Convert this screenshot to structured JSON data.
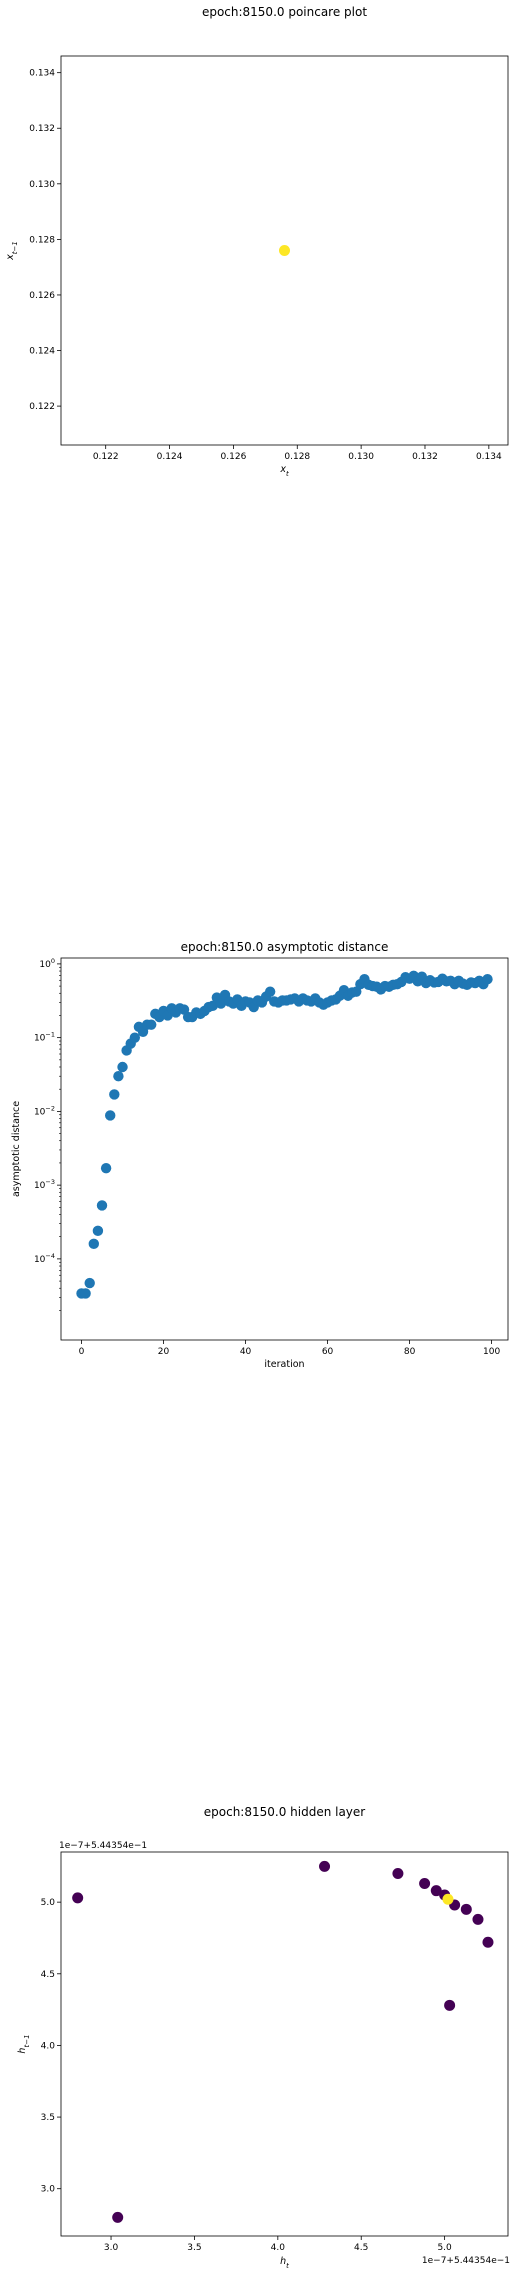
{
  "chart_data": [
    {
      "type": "scatter",
      "title": "epoch:8150.0 poincare plot",
      "xlabel": "x_t",
      "ylabel": "x_{t-1}",
      "xlim": [
        0.1206,
        0.1346
      ],
      "ylim": [
        0.1206,
        0.1346
      ],
      "xticks": [
        "0.122",
        "0.124",
        "0.126",
        "0.128",
        "0.130",
        "0.132",
        "0.134"
      ],
      "yticks": [
        "0.122",
        "0.124",
        "0.126",
        "0.128",
        "0.130",
        "0.132",
        "0.134"
      ],
      "grid": false,
      "points": [
        {
          "x": 0.1276,
          "y": 0.1276
        }
      ],
      "color": "#fde725"
    },
    {
      "type": "scatter",
      "title": "epoch:8150.0 asymptotic distance",
      "xlabel": "iteration",
      "ylabel": "asymptotic distance",
      "y_scale": "log",
      "xlim": [
        -5,
        104
      ],
      "ylim_log10": [
        -5.1,
        0.08
      ],
      "xticks": [
        "0",
        "20",
        "40",
        "60",
        "80",
        "100"
      ],
      "yticks": [
        {
          "base": "10",
          "exp": "0"
        },
        {
          "base": "10",
          "exp": "−1"
        },
        {
          "base": "10",
          "exp": "−2"
        },
        {
          "base": "10",
          "exp": "−3"
        },
        {
          "base": "10",
          "exp": "−4"
        }
      ],
      "grid": false,
      "color": "#1f77b4",
      "x": [
        0,
        1,
        2,
        3,
        4,
        5,
        6,
        7,
        8,
        9,
        10,
        11,
        12,
        13,
        14,
        15,
        16,
        17,
        18,
        19,
        20,
        21,
        22,
        23,
        24,
        25,
        26,
        27,
        28,
        29,
        30,
        31,
        32,
        33,
        34,
        35,
        36,
        37,
        38,
        39,
        40,
        41,
        42,
        43,
        44,
        45,
        46,
        47,
        48,
        49,
        50,
        51,
        52,
        53,
        54,
        55,
        56,
        57,
        58,
        59,
        60,
        61,
        62,
        63,
        64,
        65,
        66,
        67,
        68,
        69,
        70,
        71,
        72,
        73,
        74,
        75,
        76,
        77,
        78,
        79,
        80,
        81,
        82,
        83,
        84,
        85,
        86,
        87,
        88,
        89,
        90,
        91,
        92,
        93,
        94,
        95,
        96,
        97,
        98,
        99
      ],
      "y": [
        3.4e-05,
        3.4e-05,
        4.7e-05,
        0.00016,
        0.00024,
        0.00053,
        0.0017,
        0.0088,
        0.017,
        0.03,
        0.04,
        0.067,
        0.083,
        0.1,
        0.14,
        0.12,
        0.15,
        0.15,
        0.21,
        0.19,
        0.23,
        0.2,
        0.25,
        0.22,
        0.25,
        0.24,
        0.19,
        0.19,
        0.22,
        0.21,
        0.23,
        0.26,
        0.27,
        0.35,
        0.29,
        0.38,
        0.31,
        0.29,
        0.33,
        0.27,
        0.31,
        0.3,
        0.26,
        0.32,
        0.3,
        0.36,
        0.42,
        0.31,
        0.3,
        0.32,
        0.32,
        0.33,
        0.34,
        0.31,
        0.34,
        0.32,
        0.31,
        0.34,
        0.3,
        0.28,
        0.3,
        0.32,
        0.33,
        0.37,
        0.44,
        0.37,
        0.41,
        0.42,
        0.53,
        0.62,
        0.52,
        0.5,
        0.49,
        0.45,
        0.5,
        0.49,
        0.52,
        0.53,
        0.57,
        0.66,
        0.63,
        0.69,
        0.58,
        0.67,
        0.55,
        0.6,
        0.56,
        0.57,
        0.63,
        0.58,
        0.59,
        0.53,
        0.59,
        0.54,
        0.52,
        0.56,
        0.55,
        0.59,
        0.53,
        0.62
      ]
    },
    {
      "type": "scatter",
      "title": "epoch:8150.0 hidden layer",
      "xlabel": "h_t",
      "ylabel": "h_{t-1}",
      "x_offset_text": "1e−7+5.44354e−1",
      "y_offset_text": "1e−7+5.44354e−1",
      "xlim": [
        2.7,
        5.38
      ],
      "ylim": [
        2.67,
        5.35
      ],
      "xticks": [
        "3.0",
        "3.5",
        "4.0",
        "4.5",
        "5.0"
      ],
      "yticks": [
        "3.0",
        "3.5",
        "4.0",
        "4.5",
        "5.0"
      ],
      "grid": false,
      "points": [
        {
          "x": 2.8,
          "y": 5.03,
          "color": "#440154"
        },
        {
          "x": 3.04,
          "y": 2.8,
          "color": "#440154"
        },
        {
          "x": 4.28,
          "y": 5.25,
          "color": "#440154"
        },
        {
          "x": 4.72,
          "y": 5.2,
          "color": "#440154"
        },
        {
          "x": 4.88,
          "y": 5.13,
          "color": "#440154"
        },
        {
          "x": 4.95,
          "y": 5.08,
          "color": "#440154"
        },
        {
          "x": 5.0,
          "y": 5.05,
          "color": "#440154"
        },
        {
          "x": 5.06,
          "y": 4.98,
          "color": "#440154"
        },
        {
          "x": 5.13,
          "y": 4.95,
          "color": "#440154"
        },
        {
          "x": 5.2,
          "y": 4.88,
          "color": "#440154"
        },
        {
          "x": 5.26,
          "y": 4.72,
          "color": "#440154"
        },
        {
          "x": 5.03,
          "y": 4.28,
          "color": "#440154"
        },
        {
          "x": 5.02,
          "y": 5.02,
          "color": "#fde725"
        }
      ]
    }
  ]
}
